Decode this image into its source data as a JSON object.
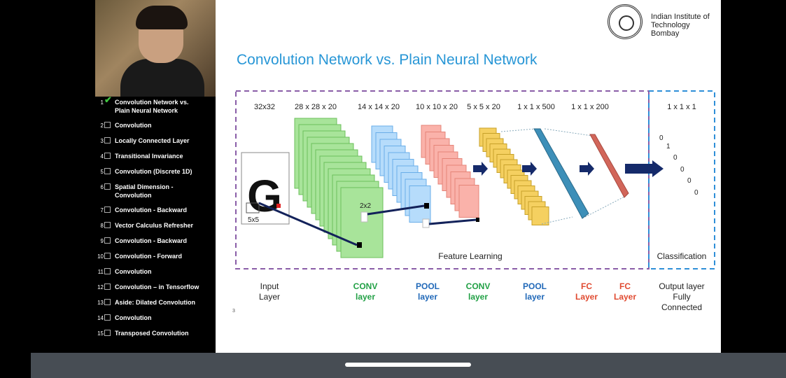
{
  "sidebar": {
    "items": [
      {
        "num": "1",
        "label": "Convolution Network vs. Plain Neural Network",
        "checked": true
      },
      {
        "num": "2",
        "label": "Convolution",
        "checked": false
      },
      {
        "num": "3",
        "label": "Locally Connected Layer",
        "checked": false
      },
      {
        "num": "4",
        "label": "Transitional Invariance",
        "checked": false
      },
      {
        "num": "5",
        "label": "Convolution (Discrete 1D)",
        "checked": false
      },
      {
        "num": "6",
        "label": "Spatial Dimension - Convolution",
        "checked": false
      },
      {
        "num": "7",
        "label": "Convolution - Backward",
        "checked": false
      },
      {
        "num": "8",
        "label": "Vector Calculus Refresher",
        "checked": false
      },
      {
        "num": "9",
        "label": "Convolution - Backward",
        "checked": false
      },
      {
        "num": "10",
        "label": "Convolution - Forward",
        "checked": false
      },
      {
        "num": "11",
        "label": "Convolution",
        "checked": false
      },
      {
        "num": "12",
        "label": "Convolution – in Tensorflow",
        "checked": false
      },
      {
        "num": "13",
        "label": "Aside: Dilated Convolution",
        "checked": false
      },
      {
        "num": "14",
        "label": "Convolution",
        "checked": false
      },
      {
        "num": "15",
        "label": "Transposed Convolution",
        "checked": false
      }
    ]
  },
  "slide": {
    "title": "Convolution Network vs. Plain Neural Network",
    "institute": {
      "line1": "Indian Institute of",
      "line2": "Technology Bombay"
    },
    "page_number": "3",
    "dims": [
      "32x32",
      "28 x 28 x 20",
      "14 x 14 x 20",
      "10 x 10 x 20",
      "5 x 5 x 20",
      "1 x 1 x 500",
      "1 x 1 x 200",
      "1 x 1 x 1"
    ],
    "input_letter": "G",
    "kernel_5x5": "5x5",
    "kernel_2x2": "2x2",
    "output_values": [
      "0",
      "1",
      "0",
      "0",
      "0",
      "0"
    ],
    "section_feature": "Feature Learning",
    "section_classification": "Classification",
    "layers": [
      {
        "line1": "Input",
        "line2": "Layer",
        "line3": ""
      },
      {
        "line1": "CONV",
        "line2": "layer",
        "line3": ""
      },
      {
        "line1": "POOL",
        "line2": "layer",
        "line3": ""
      },
      {
        "line1": "CONV",
        "line2": "layer",
        "line3": ""
      },
      {
        "line1": "POOL",
        "line2": "layer",
        "line3": ""
      },
      {
        "line1": "FC",
        "line2": "Layer",
        "line3": ""
      },
      {
        "line1": "FC",
        "line2": "Layer",
        "line3": ""
      },
      {
        "line1": "Output layer",
        "line2": "Fully",
        "line3": "Connected"
      }
    ],
    "colors": {
      "conv": "#21a045",
      "pool": "#2068b8",
      "fc": "#e04a30",
      "title": "#2796d6",
      "feature_border": "#8a5ea8",
      "class_border": "#2f8fd8"
    }
  }
}
